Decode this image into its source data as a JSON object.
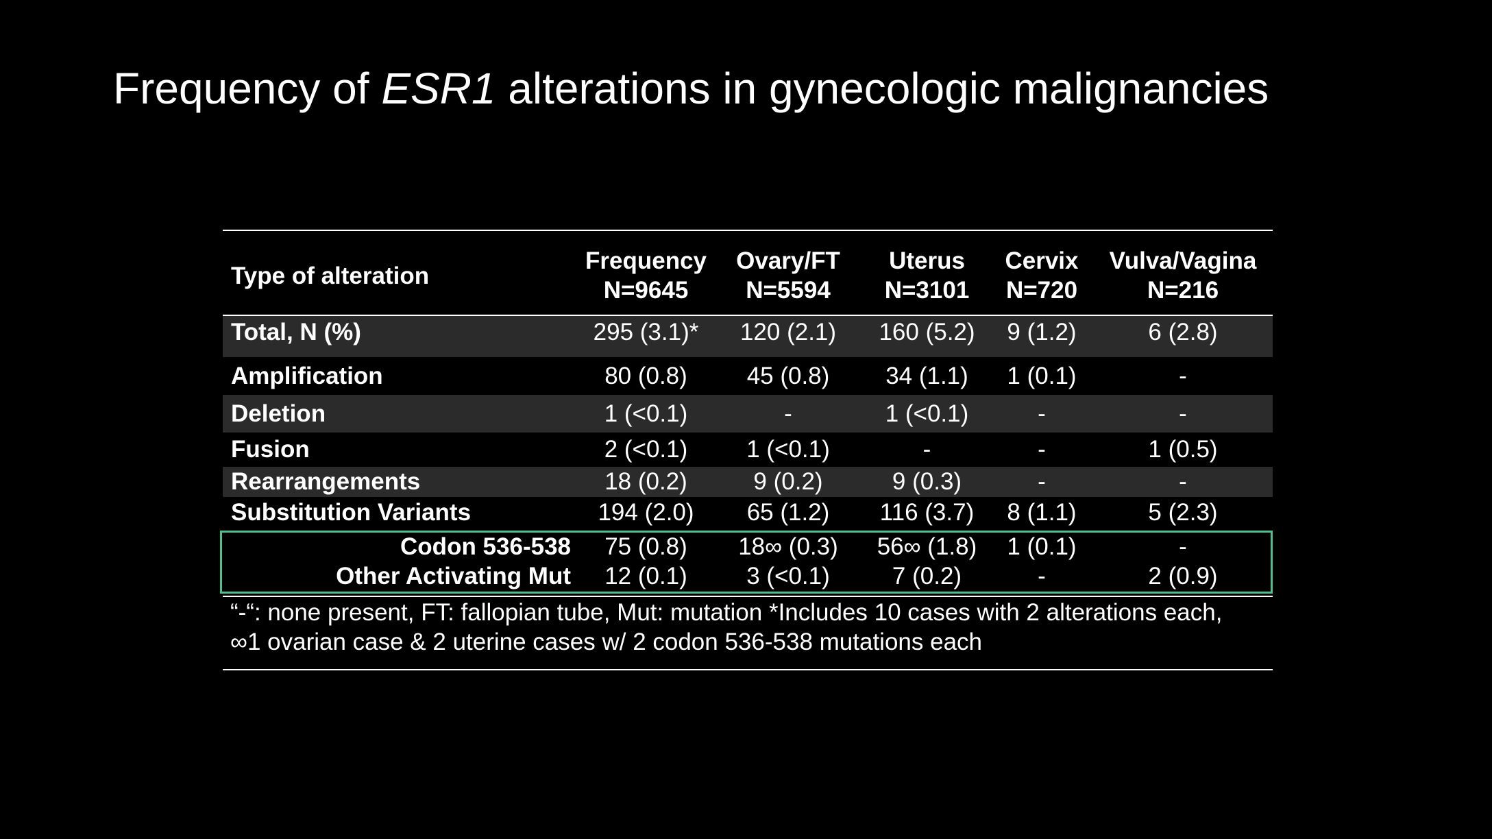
{
  "title": {
    "prefix": "Frequency of ",
    "gene": "ESR1",
    "suffix": " alterations in gynecologic malignancies"
  },
  "table": {
    "headers": [
      {
        "line1": "Type of alteration",
        "line2": ""
      },
      {
        "line1": "Frequency",
        "line2": "N=9645"
      },
      {
        "line1": "Ovary/FT",
        "line2": "N=5594"
      },
      {
        "line1": "Uterus",
        "line2": "N=3101"
      },
      {
        "line1": "Cervix",
        "line2": "N=720"
      },
      {
        "line1": "Vulva/Vagina",
        "line2": "N=216"
      }
    ],
    "rows": [
      {
        "label": "Total, N (%)",
        "values": [
          "295 (3.1)*",
          "120 (2.1)",
          "160 (5.2)",
          "9 (1.2)",
          "6 (2.8)"
        ]
      },
      {
        "label": "Amplification",
        "values": [
          "80 (0.8)",
          "45 (0.8)",
          "34 (1.1)",
          "1 (0.1)",
          "-"
        ]
      },
      {
        "label": "Deletion",
        "values": [
          "1 (<0.1)",
          "-",
          "1 (<0.1)",
          "-",
          "-"
        ]
      },
      {
        "label": "Fusion",
        "values": [
          "2 (<0.1)",
          "1 (<0.1)",
          "-",
          "-",
          "1 (0.5)"
        ]
      },
      {
        "label": "Rearrangements",
        "values": [
          "18 (0.2)",
          "9 (0.2)",
          "9 (0.3)",
          "-",
          "-"
        ]
      },
      {
        "label": "Substitution Variants",
        "values": [
          "194 (2.0)",
          "65 (1.2)",
          "116 (3.7)",
          "8 (1.1)",
          "5 (2.3)"
        ]
      },
      {
        "label": "Codon 536-538",
        "values": [
          "75 (0.8)",
          "18∞ (0.3)",
          "56∞ (1.8)",
          "1 (0.1)",
          "-"
        ]
      },
      {
        "label": "Other Activating Mut",
        "values": [
          "12 (0.1)",
          "3 (<0.1)",
          "7 (0.2)",
          "-",
          "2 (0.9)"
        ]
      }
    ]
  },
  "footnote": {
    "line1": "“-“: none present, FT: fallopian tube, Mut: mutation *Includes 10 cases with 2 alterations each,",
    "line2": "∞1 ovarian case & 2 uterine cases w/ 2 codon 536-538 mutations each"
  },
  "colors": {
    "background": "#000000",
    "text": "#ffffff",
    "shaded_row": "#2b2b2b",
    "highlight_border": "#4fc08d"
  }
}
